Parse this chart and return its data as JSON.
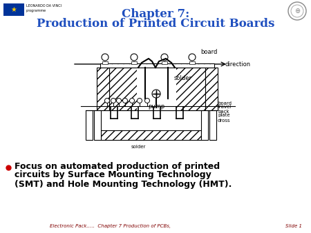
{
  "title_line1": "Chapter 7:",
  "title_line2": "Production of Printed Circuit Boards",
  "title_color": "#1F4FBF",
  "background_color": "#FFFFFF",
  "bullet_text_line1": "Focus on automated production of printed",
  "bullet_text_line2": "circuits by Surface Mounting Technology",
  "bullet_text_line3": "(SMT) and Hole Mounting Technology (HMT).",
  "bullet_color": "#CC0000",
  "footer_text": "Electronic Pack…..  Chapter 7 Production of PCBs,",
  "footer_right": "Slide 1",
  "footer_color": "#800000"
}
